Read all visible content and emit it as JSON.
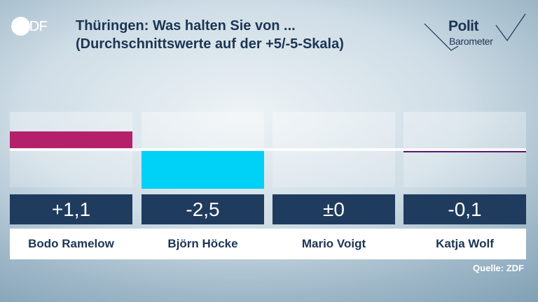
{
  "header": {
    "logo": "ZDF",
    "title_line1": "Thüringen: Was halten Sie von ...",
    "title_line2": "(Durchschnittswerte auf der +5/-5-Skala)",
    "brand_line1": "Polit",
    "brand_line2": "Barometer"
  },
  "colors": {
    "ramelow": "#b5206a",
    "hoecke": "#00d1f7",
    "voigt": "#1c3554",
    "wolf": "#5a1a6e"
  },
  "chart_data": {
    "type": "bar",
    "title": "Thüringen: Was halten Sie von ...",
    "subtitle": "(Durchschnittswerte auf der +5/-5-Skala)",
    "categories": [
      "Bodo Ramelow",
      "Björn Höcke",
      "Mario Voigt",
      "Katja Wolf"
    ],
    "values": [
      1.1,
      -2.5,
      0,
      -0.1
    ],
    "value_labels": [
      "+1,1",
      "-2,5",
      "±0",
      "-0,1"
    ],
    "ylim": [
      -5,
      5
    ],
    "source": "Quelle: ZDF"
  }
}
